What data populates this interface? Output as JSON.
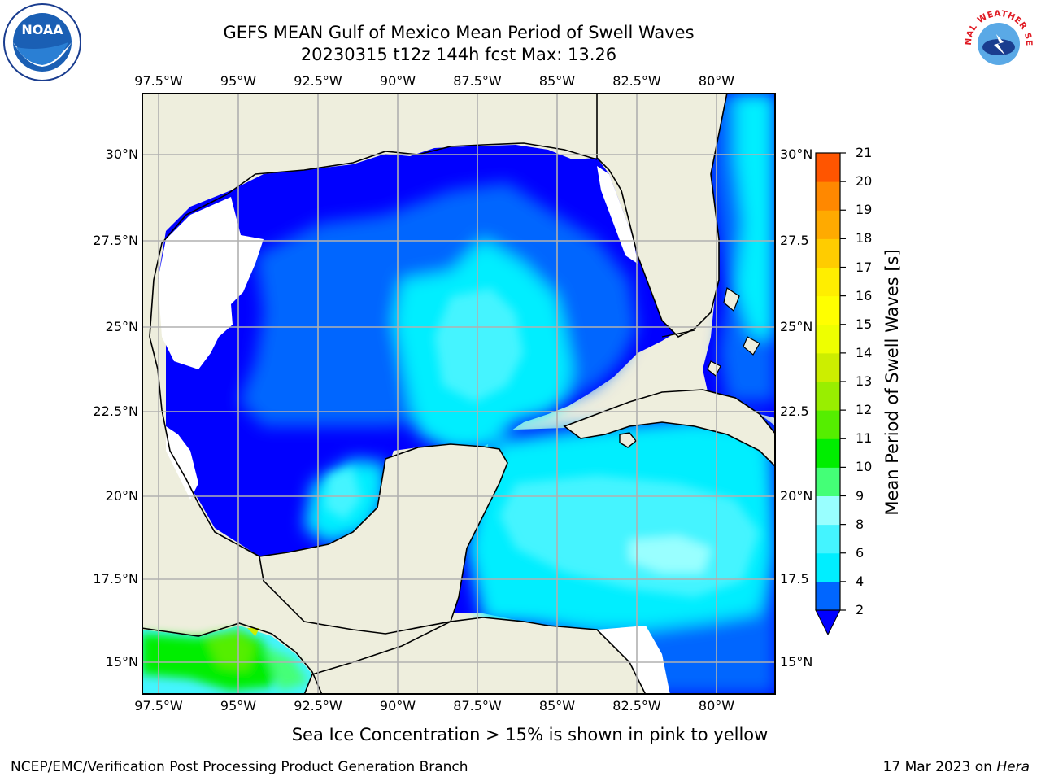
{
  "title": {
    "line1": "GEFS MEAN Gulf of Mexico Mean Period of Swell Waves",
    "line2": "20230315 t12z 144h fcst   Max: 13.26"
  },
  "map": {
    "lon_labels": [
      "97.5°W",
      "95°W",
      "92.5°W",
      "90°W",
      "87.5°W",
      "85°W",
      "82.5°W",
      "80°W"
    ],
    "lat_labels": [
      "30°N",
      "27.5°N",
      "25°N",
      "22.5°N",
      "20°N",
      "17.5°N",
      "15°N"
    ],
    "lat_labels_right": [
      "30°N",
      "27.5",
      "25°N",
      "22.5",
      "20°N",
      "17.5",
      "15°N"
    ],
    "land_color": "#eeeedd",
    "missing_color": "#ffffff",
    "grid_color": "#b0b0b0"
  },
  "colorbar": {
    "title": "Mean Period of Swell Waves [s]",
    "labels": [
      "2",
      "4",
      "6",
      "8",
      "9",
      "10",
      "11",
      "12",
      "13",
      "14",
      "15",
      "16",
      "17",
      "18",
      "19",
      "20",
      "21"
    ],
    "colors": [
      "#0066ff",
      "#00eeff",
      "#44f4ff",
      "#99ffff",
      "#44ff77",
      "#00ee00",
      "#55ee00",
      "#99ee00",
      "#ccee00",
      "#eeff00",
      "#ffff00",
      "#ffee00",
      "#ffcc00",
      "#ffaa00",
      "#ff8800",
      "#ff5500",
      "#ff2200",
      "#ff0000"
    ],
    "under_color": "#0000ff"
  },
  "caption": "Sea Ice Concentration > 15% is shown in pink to yellow",
  "footer": {
    "left": "NCEP/EMC/Verification Post Processing Product Generation Branch",
    "right_date": "17 Mar 2023 on ",
    "right_host": "Hera"
  },
  "logos": {
    "noaa_text": "NOAA",
    "nws_text": "NATIONAL WEATHER SERVICE"
  }
}
